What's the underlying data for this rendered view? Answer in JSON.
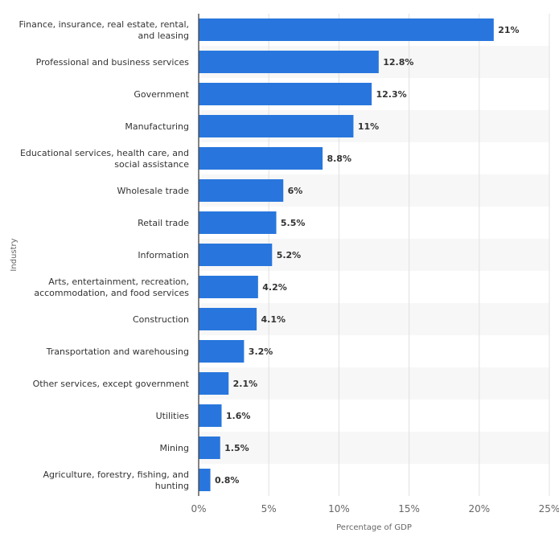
{
  "chart_data": {
    "type": "bar",
    "orientation": "horizontal",
    "categories": [
      [
        "Finance, insurance, real estate, rental,",
        "and leasing"
      ],
      [
        "Professional and business services"
      ],
      [
        "Government"
      ],
      [
        "Manufacturing"
      ],
      [
        "Educational services, health care, and",
        "social assistance"
      ],
      [
        "Wholesale trade"
      ],
      [
        "Retail trade"
      ],
      [
        "Information"
      ],
      [
        "Arts, entertainment, recreation,",
        "accommodation, and food services"
      ],
      [
        "Construction"
      ],
      [
        "Transportation and warehousing"
      ],
      [
        "Other services, except government"
      ],
      [
        "Utilities"
      ],
      [
        "Mining"
      ],
      [
        "Agriculture, forestry, fishing, and",
        "hunting"
      ]
    ],
    "values": [
      21,
      12.8,
      12.3,
      11,
      8.8,
      6,
      5.5,
      5.2,
      4.2,
      4.1,
      3.2,
      2.1,
      1.6,
      1.5,
      0.8
    ],
    "value_labels": [
      "21%",
      "12.8%",
      "12.3%",
      "11%",
      "8.8%",
      "6%",
      "5.5%",
      "5.2%",
      "4.2%",
      "4.1%",
      "3.2%",
      "2.1%",
      "1.6%",
      "1.5%",
      "0.8%"
    ],
    "xlabel": "Percentage of GDP",
    "ylabel": "Industry",
    "xlim": [
      0,
      25
    ],
    "xticks": [
      0,
      5,
      10,
      15,
      20,
      25
    ],
    "xtick_labels": [
      "0%",
      "5%",
      "10%",
      "15%",
      "20%",
      "25%"
    ],
    "grid": true,
    "colors": {
      "bar": "#2876dd",
      "band": "#f7f7f7",
      "grid": "#e0e0e0",
      "axis": "#333333"
    }
  }
}
